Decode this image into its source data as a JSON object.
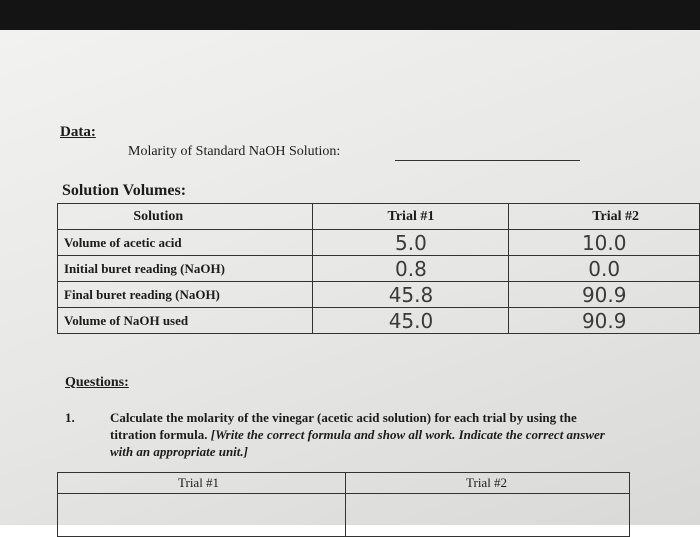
{
  "header": {
    "label": "Data:",
    "molarity_label": "Molarity of Standard NaOH Solution:"
  },
  "table": {
    "title": "Solution Volumes:",
    "columns": [
      "Solution",
      "Trial #1",
      "Trial #2"
    ],
    "rows": [
      [
        "Volume of acetic acid",
        "5.0",
        "10.0"
      ],
      [
        "Initial buret reading (NaOH)",
        "0.8",
        "0.0"
      ],
      [
        "Final buret reading (NaOH)",
        "45.8",
        "90.9"
      ],
      [
        "Volume of NaOH used",
        "45.0",
        "90.9"
      ]
    ]
  },
  "questions": {
    "title": "Questions:",
    "items": [
      {
        "number": "1.",
        "text": "Calculate the molarity of the vinegar (acetic acid solution) for each trial by using the titration formula.",
        "instruction": "[Write the correct formula and show all work.  Indicate the correct answer with an appropriate unit.]"
      }
    ],
    "answer_table": {
      "columns": [
        "Trial #1",
        "Trial #2"
      ]
    }
  }
}
